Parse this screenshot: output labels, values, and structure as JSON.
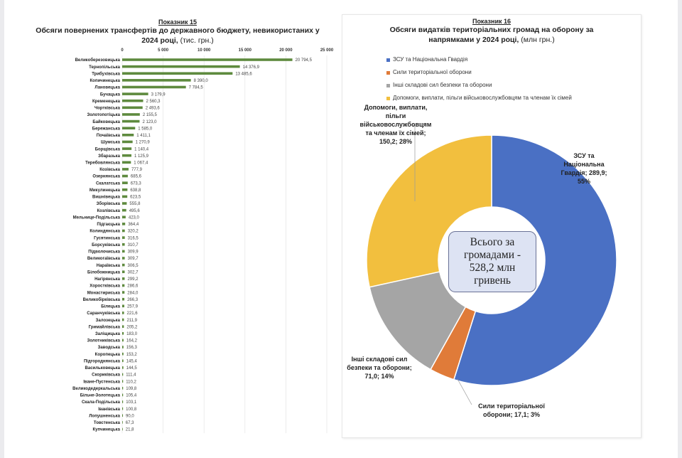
{
  "chart_data": [
    {
      "type": "bar",
      "orientation": "horizontal",
      "label": "Показник 15",
      "title": "Обсяги повернених трансфертів до державного бюджету, невикористаних у 2024 році,",
      "title_unit": "(тис. грн.)",
      "xlim": [
        0,
        25000
      ],
      "ticks": [
        "0",
        "5 000",
        "10 000",
        "15 000",
        "20 000",
        "25 000"
      ],
      "tick_values": [
        0,
        5000,
        10000,
        15000,
        20000,
        25000
      ],
      "grid": true,
      "bar_color": "#5e8a3e",
      "categories": [
        "Великоберезовицька",
        "Тернопільська",
        "Трибухівська",
        "Копичинецька",
        "Лановецька",
        "Бучацька",
        "Кременецька",
        "Чортківська",
        "Золотопотіцька",
        "Байковецька",
        "Бережанська",
        "Почаївська",
        "Шумська",
        "Борщівська",
        "Збаразька",
        "Теребовлянська",
        "Козівська",
        "Озернянська",
        "Скалатська",
        "Микулинецька",
        "Вишнівецька",
        "Зборівська",
        "Козлівська",
        "Мельнице-Подільська",
        "Підгаєцька",
        "Колиндянська",
        "Гусятинська",
        "Борсуківська",
        "Підволочиська",
        "Великогаївська",
        "Нараївська",
        "Білобожницька",
        "Нагірянська",
        "Хоростківська",
        "Монастириська",
        "Великобірківська",
        "Білецька",
        "Саранчуківська",
        "Залозецька",
        "Гримайлівська",
        "Заліщицька",
        "Золотниківська",
        "Заводська",
        "Коропецька",
        "Підгороднянська",
        "Васильковецька",
        "Скориківська",
        "Іване-Пустенська",
        "Великодедеркальська",
        "Більче-Золотецька",
        "Скала-Подільська",
        "Іванівська",
        "Лопушненська",
        "Товстенська",
        "Купчинецька"
      ],
      "values": [
        20794.5,
        14376.9,
        13485.6,
        8390.0,
        7784.5,
        3179.9,
        2560.3,
        2493.6,
        2155.5,
        2123.0,
        1585.0,
        1411.1,
        1270.9,
        1140.4,
        1125.9,
        1067.4,
        777.9,
        685.6,
        673.3,
        638.8,
        623.5,
        555.8,
        495.6,
        423.0,
        364.4,
        320.2,
        316.5,
        310.7,
        309.9,
        309.7,
        306.5,
        302.7,
        299.2,
        286.6,
        284.0,
        266.3,
        257.9,
        221.6,
        211.9,
        205.2,
        183.0,
        164.2,
        156.3,
        153.2,
        145.4,
        144.5,
        111.4,
        110.2,
        109.8,
        105.4,
        103.1,
        100.8,
        90.0,
        67.3,
        21.8
      ],
      "value_labels": [
        "20 794,5",
        "14 376,9",
        "13 485,6",
        "8 390,0",
        "7 784,5",
        "3 179,9",
        "2 560,3",
        "2 493,6",
        "2 155,5",
        "2 123,0",
        "1 585,0",
        "1 411,1",
        "1 270,9",
        "1 140,4",
        "1 125,9",
        "1 067,4",
        "777,9",
        "685,6",
        "673,3",
        "638,8",
        "623,5",
        "555,8",
        "495,6",
        "423,0",
        "364,4",
        "320,2",
        "316,5",
        "310,7",
        "309,9",
        "309,7",
        "306,5",
        "302,7",
        "299,2",
        "286,6",
        "284,0",
        "266,3",
        "257,9",
        "221,6",
        "211,9",
        "205,2",
        "183,0",
        "164,2",
        "156,3",
        "153,2",
        "145,4",
        "144,5",
        "111,4",
        "110,2",
        "109,8",
        "105,4",
        "103,1",
        "100,8",
        "90,0",
        "67,3",
        "21,8"
      ]
    },
    {
      "type": "pie",
      "variant": "donut",
      "label": "Показник 16",
      "title": "Обсяги видатків територіальних громад на оборону за напрямками у 2024 році,",
      "title_unit": "(млн грн.)",
      "legend_position": "top-left",
      "series": [
        {
          "name": "ЗСУ та Національна Гвардія",
          "value": 289.9,
          "percent": "55%",
          "color": "#4a70c4",
          "label": "ЗСУ та Національна Гвардія;  289,9; 55%"
        },
        {
          "name": "Сили територіальної оборони",
          "value": 17.1,
          "percent": "3%",
          "color": "#e07b39",
          "label": "Сили територіальної оборони;  17,1; 3%"
        },
        {
          "name": "Інші складові сил безпеки та оборони",
          "value": 71.0,
          "percent": "14%",
          "color": "#a5a5a5",
          "label": "Інші складові сил безпеки та оборони;  71,0; 14%"
        },
        {
          "name": "Допомоги, виплати, пільги  військовослужбовцям та членам їх сімей",
          "value": 150.2,
          "percent": "28%",
          "color": "#f2bf3e",
          "label": "Допомоги, виплати, пільги військовослужбовцям та членам їх сімей;  150,2; 28%"
        }
      ],
      "center_text": "Всього за громадами - 528,2 млн гривень"
    }
  ]
}
